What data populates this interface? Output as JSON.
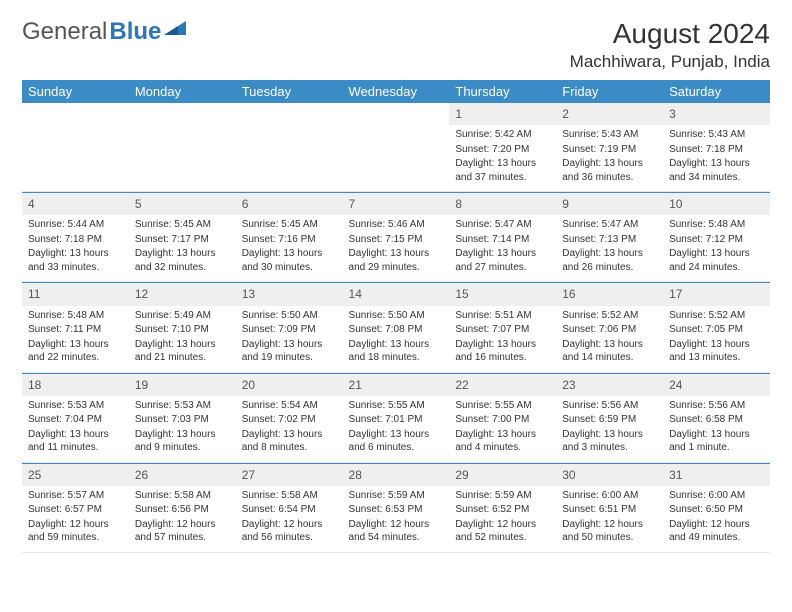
{
  "brand": {
    "part1": "General",
    "part2": "Blue"
  },
  "title": "August 2024",
  "location": "Machhiwara, Punjab, India",
  "colors": {
    "header_bg": "#3b8bc6",
    "header_text": "#ffffff",
    "daynum_bg": "#efefef",
    "accent": "#2b77b8",
    "body_text": "#333333"
  },
  "weekdays": [
    "Sunday",
    "Monday",
    "Tuesday",
    "Wednesday",
    "Thursday",
    "Friday",
    "Saturday"
  ],
  "weeks": [
    [
      null,
      null,
      null,
      null,
      {
        "n": "1",
        "sr": "5:42 AM",
        "ss": "7:20 PM",
        "dl": "Daylight: 13 hours and 37 minutes."
      },
      {
        "n": "2",
        "sr": "5:43 AM",
        "ss": "7:19 PM",
        "dl": "Daylight: 13 hours and 36 minutes."
      },
      {
        "n": "3",
        "sr": "5:43 AM",
        "ss": "7:18 PM",
        "dl": "Daylight: 13 hours and 34 minutes."
      }
    ],
    [
      {
        "n": "4",
        "sr": "5:44 AM",
        "ss": "7:18 PM",
        "dl": "Daylight: 13 hours and 33 minutes."
      },
      {
        "n": "5",
        "sr": "5:45 AM",
        "ss": "7:17 PM",
        "dl": "Daylight: 13 hours and 32 minutes."
      },
      {
        "n": "6",
        "sr": "5:45 AM",
        "ss": "7:16 PM",
        "dl": "Daylight: 13 hours and 30 minutes."
      },
      {
        "n": "7",
        "sr": "5:46 AM",
        "ss": "7:15 PM",
        "dl": "Daylight: 13 hours and 29 minutes."
      },
      {
        "n": "8",
        "sr": "5:47 AM",
        "ss": "7:14 PM",
        "dl": "Daylight: 13 hours and 27 minutes."
      },
      {
        "n": "9",
        "sr": "5:47 AM",
        "ss": "7:13 PM",
        "dl": "Daylight: 13 hours and 26 minutes."
      },
      {
        "n": "10",
        "sr": "5:48 AM",
        "ss": "7:12 PM",
        "dl": "Daylight: 13 hours and 24 minutes."
      }
    ],
    [
      {
        "n": "11",
        "sr": "5:48 AM",
        "ss": "7:11 PM",
        "dl": "Daylight: 13 hours and 22 minutes."
      },
      {
        "n": "12",
        "sr": "5:49 AM",
        "ss": "7:10 PM",
        "dl": "Daylight: 13 hours and 21 minutes."
      },
      {
        "n": "13",
        "sr": "5:50 AM",
        "ss": "7:09 PM",
        "dl": "Daylight: 13 hours and 19 minutes."
      },
      {
        "n": "14",
        "sr": "5:50 AM",
        "ss": "7:08 PM",
        "dl": "Daylight: 13 hours and 18 minutes."
      },
      {
        "n": "15",
        "sr": "5:51 AM",
        "ss": "7:07 PM",
        "dl": "Daylight: 13 hours and 16 minutes."
      },
      {
        "n": "16",
        "sr": "5:52 AM",
        "ss": "7:06 PM",
        "dl": "Daylight: 13 hours and 14 minutes."
      },
      {
        "n": "17",
        "sr": "5:52 AM",
        "ss": "7:05 PM",
        "dl": "Daylight: 13 hours and 13 minutes."
      }
    ],
    [
      {
        "n": "18",
        "sr": "5:53 AM",
        "ss": "7:04 PM",
        "dl": "Daylight: 13 hours and 11 minutes."
      },
      {
        "n": "19",
        "sr": "5:53 AM",
        "ss": "7:03 PM",
        "dl": "Daylight: 13 hours and 9 minutes."
      },
      {
        "n": "20",
        "sr": "5:54 AM",
        "ss": "7:02 PM",
        "dl": "Daylight: 13 hours and 8 minutes."
      },
      {
        "n": "21",
        "sr": "5:55 AM",
        "ss": "7:01 PM",
        "dl": "Daylight: 13 hours and 6 minutes."
      },
      {
        "n": "22",
        "sr": "5:55 AM",
        "ss": "7:00 PM",
        "dl": "Daylight: 13 hours and 4 minutes."
      },
      {
        "n": "23",
        "sr": "5:56 AM",
        "ss": "6:59 PM",
        "dl": "Daylight: 13 hours and 3 minutes."
      },
      {
        "n": "24",
        "sr": "5:56 AM",
        "ss": "6:58 PM",
        "dl": "Daylight: 13 hours and 1 minute."
      }
    ],
    [
      {
        "n": "25",
        "sr": "5:57 AM",
        "ss": "6:57 PM",
        "dl": "Daylight: 12 hours and 59 minutes."
      },
      {
        "n": "26",
        "sr": "5:58 AM",
        "ss": "6:56 PM",
        "dl": "Daylight: 12 hours and 57 minutes."
      },
      {
        "n": "27",
        "sr": "5:58 AM",
        "ss": "6:54 PM",
        "dl": "Daylight: 12 hours and 56 minutes."
      },
      {
        "n": "28",
        "sr": "5:59 AM",
        "ss": "6:53 PM",
        "dl": "Daylight: 12 hours and 54 minutes."
      },
      {
        "n": "29",
        "sr": "5:59 AM",
        "ss": "6:52 PM",
        "dl": "Daylight: 12 hours and 52 minutes."
      },
      {
        "n": "30",
        "sr": "6:00 AM",
        "ss": "6:51 PM",
        "dl": "Daylight: 12 hours and 50 minutes."
      },
      {
        "n": "31",
        "sr": "6:00 AM",
        "ss": "6:50 PM",
        "dl": "Daylight: 12 hours and 49 minutes."
      }
    ]
  ],
  "labels": {
    "sunrise": "Sunrise:",
    "sunset": "Sunset:"
  }
}
